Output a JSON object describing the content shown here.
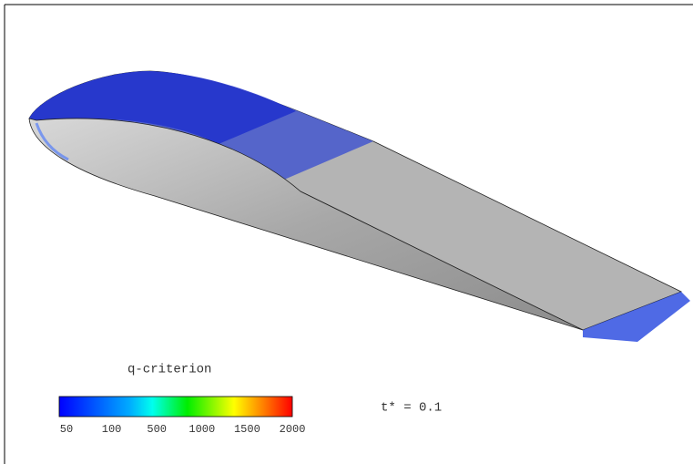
{
  "legend": {
    "title": "q-criterion",
    "ticks": [
      "50",
      "100",
      "500",
      "1000",
      "1500",
      "2000"
    ]
  },
  "time_label": "t* = 0.1"
}
